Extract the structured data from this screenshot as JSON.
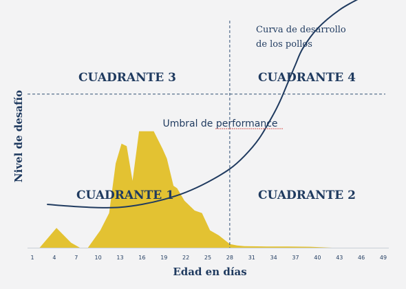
{
  "chart_data": {
    "type": "area",
    "xlabel": "Edad en días",
    "ylabel": "Nivel de desafío",
    "x_ticks": [
      "1",
      "4",
      "7",
      "10",
      "13",
      "16",
      "19",
      "22",
      "25",
      "28",
      "31",
      "34",
      "37",
      "40",
      "43",
      "46",
      "49"
    ],
    "xlim": [
      1,
      49
    ],
    "ylim": [
      0,
      100
    ],
    "vline_x": 28,
    "threshold_y": 62,
    "threshold_label": "Umbral de performance",
    "quadrants": [
      "CUADRANTE 3",
      "CUADRANTE 4",
      "CUADRANTE 1",
      "CUADRANTE 2"
    ],
    "curve_label_line1": "Curva de desarrollo",
    "curve_label_line2": "de los pollos",
    "curve": {
      "x": [
        3,
        7,
        10,
        13,
        16,
        19,
        22,
        25,
        28,
        30,
        32,
        34,
        35,
        36,
        37,
        38,
        40,
        43,
        46,
        48
      ],
      "y": [
        17.5,
        16.6,
        16.2,
        16.3,
        17.5,
        19.5,
        22.4,
        26.5,
        31.8,
        37,
        44,
        54,
        60,
        67,
        74,
        80.5,
        88.5,
        96,
        101,
        103.5
      ]
    },
    "series": [
      {
        "x": [
          2,
          4.3,
          6.3,
          7.5,
          8.6,
          10.3,
          11.5,
          12.4,
          13.2,
          13.9,
          14.7,
          15.6,
          17.6,
          18.8,
          19.4,
          20.3,
          20.8,
          21.8,
          23.2,
          24.2,
          25.3,
          26.5,
          28,
          29,
          30,
          33,
          36,
          39,
          42
        ],
        "y": [
          0,
          8,
          2,
          0,
          0,
          7,
          14,
          34,
          42,
          41,
          27,
          47,
          47,
          40,
          36,
          25,
          24,
          19,
          15,
          14,
          7,
          5,
          1.5,
          0.9,
          0.6,
          0.5,
          0.5,
          0.4,
          0
        ]
      }
    ],
    "colors": {
      "area": "#e3c232",
      "curve": "#1f3a5f",
      "text": "#1f3a5f",
      "guides": "#2f4f73",
      "background": "#f3f3f4"
    }
  }
}
